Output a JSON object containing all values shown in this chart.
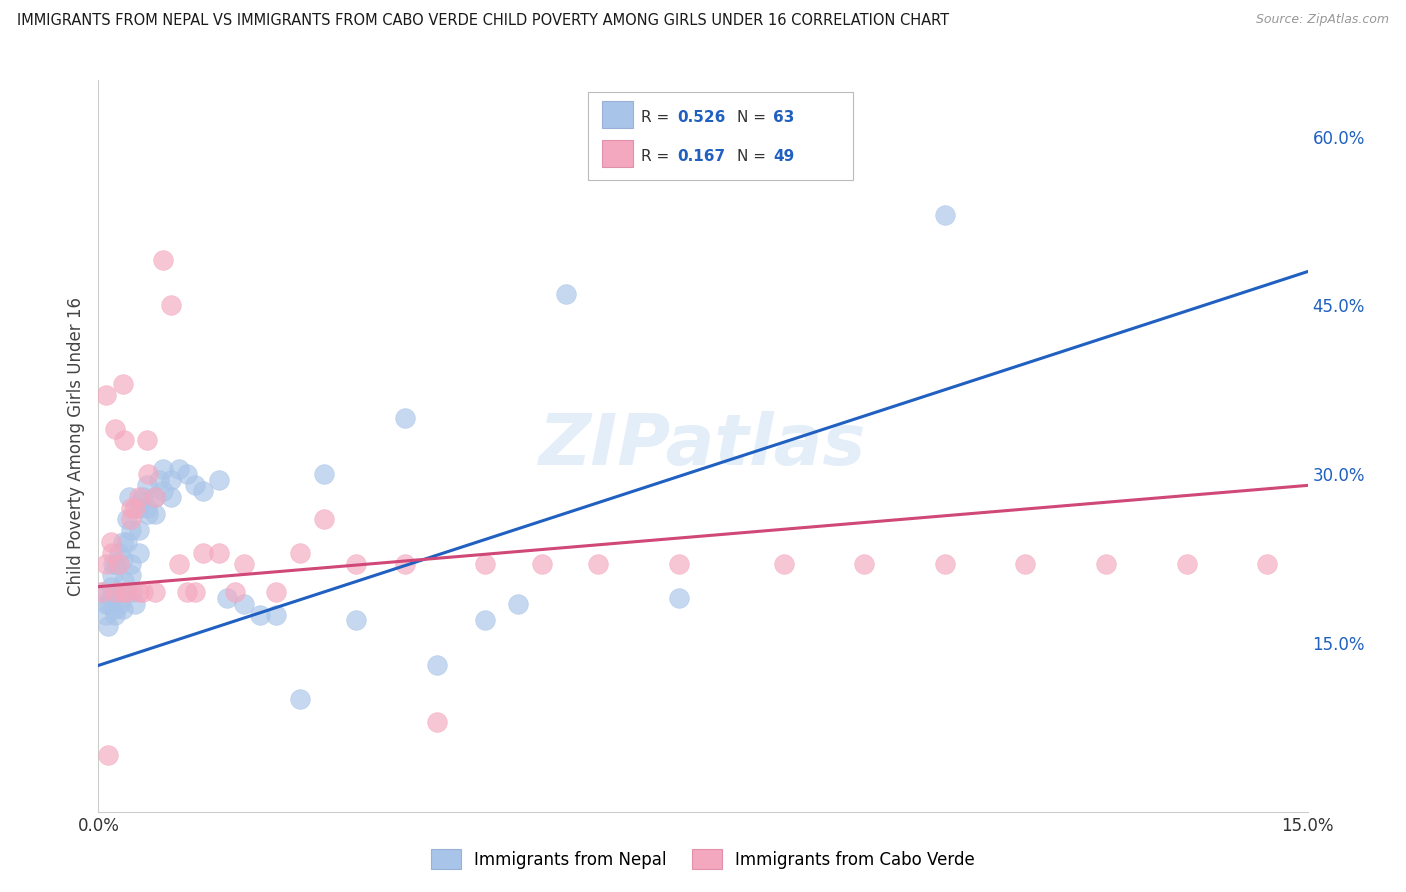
{
  "title": "IMMIGRANTS FROM NEPAL VS IMMIGRANTS FROM CABO VERDE CHILD POVERTY AMONG GIRLS UNDER 16 CORRELATION CHART",
  "source": "Source: ZipAtlas.com",
  "ylabel": "Child Poverty Among Girls Under 16",
  "x_min": 0.0,
  "x_max": 0.15,
  "y_min": 0.0,
  "y_max": 0.65,
  "nepal_color": "#a8c4e8",
  "cabo_verde_color": "#f4a8bf",
  "nepal_line_color": "#2060c0",
  "cabo_verde_line_color": "#d04878",
  "R_nepal": 0.526,
  "N_nepal": 63,
  "R_cabo": 0.167,
  "N_cabo": 49,
  "background_color": "#ffffff",
  "grid_color": "#cccccc",
  "watermark": "ZIPatlas",
  "nepal_line_x0": 0.0,
  "nepal_line_y0": 0.13,
  "nepal_line_x1": 0.15,
  "nepal_line_y1": 0.48,
  "cabo_line_x0": 0.0,
  "cabo_line_y0": 0.2,
  "cabo_line_x1": 0.15,
  "cabo_line_y1": 0.29,
  "nepal_x": [
    0.0005,
    0.001,
    0.001,
    0.0012,
    0.0013,
    0.0015,
    0.0015,
    0.0017,
    0.0018,
    0.002,
    0.002,
    0.002,
    0.0022,
    0.0025,
    0.0025,
    0.0027,
    0.003,
    0.003,
    0.003,
    0.003,
    0.0032,
    0.0035,
    0.0035,
    0.0038,
    0.004,
    0.004,
    0.004,
    0.0042,
    0.0045,
    0.005,
    0.005,
    0.005,
    0.0052,
    0.0055,
    0.006,
    0.006,
    0.0062,
    0.007,
    0.007,
    0.0075,
    0.008,
    0.008,
    0.009,
    0.009,
    0.01,
    0.011,
    0.012,
    0.013,
    0.015,
    0.016,
    0.018,
    0.02,
    0.022,
    0.025,
    0.028,
    0.032,
    0.038,
    0.042,
    0.048,
    0.052,
    0.058,
    0.072,
    0.105
  ],
  "nepal_y": [
    0.195,
    0.185,
    0.175,
    0.165,
    0.185,
    0.19,
    0.2,
    0.21,
    0.22,
    0.195,
    0.175,
    0.18,
    0.22,
    0.23,
    0.195,
    0.185,
    0.24,
    0.225,
    0.195,
    0.18,
    0.205,
    0.26,
    0.24,
    0.28,
    0.25,
    0.22,
    0.21,
    0.195,
    0.185,
    0.27,
    0.25,
    0.23,
    0.275,
    0.28,
    0.29,
    0.27,
    0.265,
    0.28,
    0.265,
    0.295,
    0.305,
    0.285,
    0.295,
    0.28,
    0.305,
    0.3,
    0.29,
    0.285,
    0.295,
    0.19,
    0.185,
    0.175,
    0.175,
    0.1,
    0.3,
    0.17,
    0.35,
    0.13,
    0.17,
    0.185,
    0.46,
    0.19,
    0.53
  ],
  "cabo_x": [
    0.0005,
    0.001,
    0.001,
    0.0012,
    0.0015,
    0.0017,
    0.002,
    0.002,
    0.0025,
    0.003,
    0.003,
    0.0032,
    0.0035,
    0.004,
    0.004,
    0.0045,
    0.005,
    0.005,
    0.0055,
    0.006,
    0.0062,
    0.007,
    0.007,
    0.008,
    0.009,
    0.01,
    0.011,
    0.012,
    0.013,
    0.015,
    0.017,
    0.018,
    0.022,
    0.025,
    0.028,
    0.032,
    0.038,
    0.042,
    0.048,
    0.055,
    0.062,
    0.072,
    0.085,
    0.095,
    0.105,
    0.115,
    0.125,
    0.135,
    0.145
  ],
  "cabo_y": [
    0.195,
    0.37,
    0.22,
    0.05,
    0.24,
    0.23,
    0.195,
    0.34,
    0.22,
    0.195,
    0.38,
    0.33,
    0.195,
    0.26,
    0.27,
    0.27,
    0.28,
    0.195,
    0.195,
    0.33,
    0.3,
    0.28,
    0.195,
    0.49,
    0.45,
    0.22,
    0.195,
    0.195,
    0.23,
    0.23,
    0.195,
    0.22,
    0.195,
    0.23,
    0.26,
    0.22,
    0.22,
    0.08,
    0.22,
    0.22,
    0.22,
    0.22,
    0.22,
    0.22,
    0.22,
    0.22,
    0.22,
    0.22,
    0.22
  ]
}
